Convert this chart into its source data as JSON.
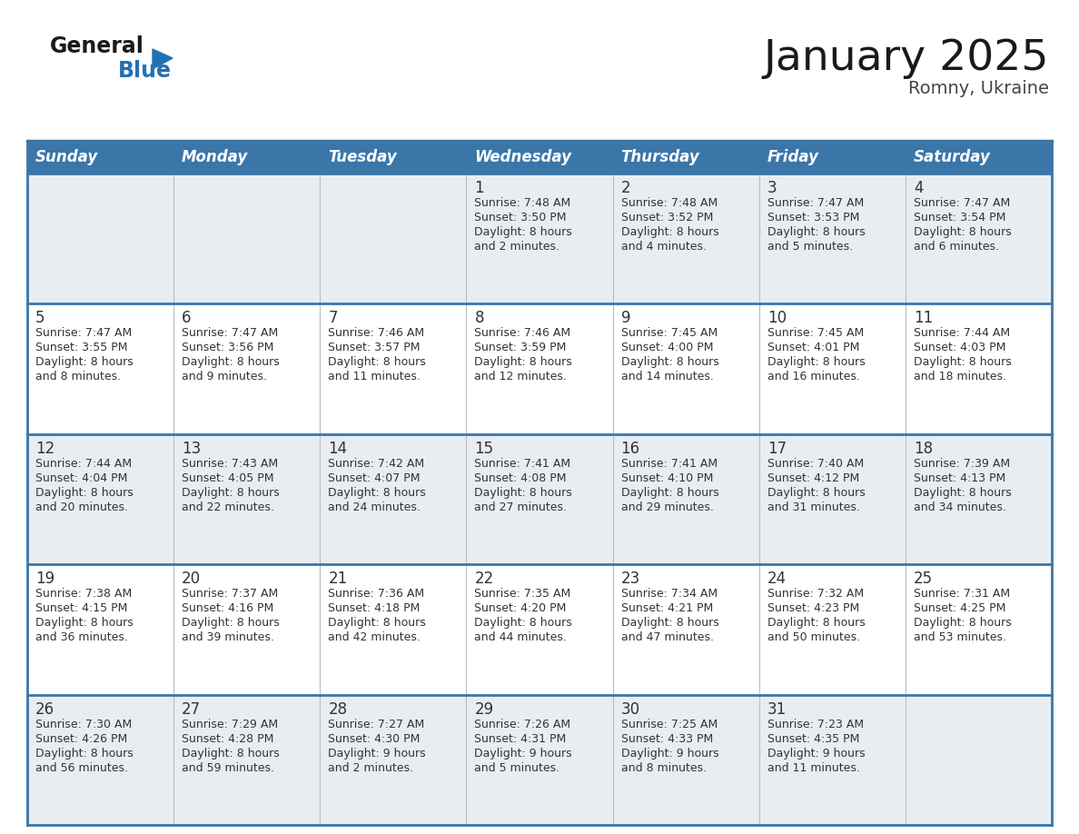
{
  "title": "January 2025",
  "subtitle": "Romny, Ukraine",
  "days_of_week": [
    "Sunday",
    "Monday",
    "Tuesday",
    "Wednesday",
    "Thursday",
    "Friday",
    "Saturday"
  ],
  "header_bg": "#3a76a8",
  "header_text_color": "#ffffff",
  "row_bg_light": "#e8edf2",
  "row_bg_white": "#ffffff",
  "separator_color": "#3a76a8",
  "day_num_color": "#333333",
  "cell_text_color": "#333333",
  "title_color": "#1a1a1a",
  "subtitle_color": "#444444",
  "logo_general_color": "#1a1a1a",
  "logo_blue_color": "#2271b3",
  "calendar_data": [
    [
      {
        "day": null,
        "sunrise": null,
        "sunset": null,
        "daylight": null
      },
      {
        "day": null,
        "sunrise": null,
        "sunset": null,
        "daylight": null
      },
      {
        "day": null,
        "sunrise": null,
        "sunset": null,
        "daylight": null
      },
      {
        "day": 1,
        "sunrise": "7:48 AM",
        "sunset": "3:50 PM",
        "daylight_h": "Daylight: 8 hours",
        "daylight_m": "and 2 minutes."
      },
      {
        "day": 2,
        "sunrise": "7:48 AM",
        "sunset": "3:52 PM",
        "daylight_h": "Daylight: 8 hours",
        "daylight_m": "and 4 minutes."
      },
      {
        "day": 3,
        "sunrise": "7:47 AM",
        "sunset": "3:53 PM",
        "daylight_h": "Daylight: 8 hours",
        "daylight_m": "and 5 minutes."
      },
      {
        "day": 4,
        "sunrise": "7:47 AM",
        "sunset": "3:54 PM",
        "daylight_h": "Daylight: 8 hours",
        "daylight_m": "and 6 minutes."
      }
    ],
    [
      {
        "day": 5,
        "sunrise": "7:47 AM",
        "sunset": "3:55 PM",
        "daylight_h": "Daylight: 8 hours",
        "daylight_m": "and 8 minutes."
      },
      {
        "day": 6,
        "sunrise": "7:47 AM",
        "sunset": "3:56 PM",
        "daylight_h": "Daylight: 8 hours",
        "daylight_m": "and 9 minutes."
      },
      {
        "day": 7,
        "sunrise": "7:46 AM",
        "sunset": "3:57 PM",
        "daylight_h": "Daylight: 8 hours",
        "daylight_m": "and 11 minutes."
      },
      {
        "day": 8,
        "sunrise": "7:46 AM",
        "sunset": "3:59 PM",
        "daylight_h": "Daylight: 8 hours",
        "daylight_m": "and 12 minutes."
      },
      {
        "day": 9,
        "sunrise": "7:45 AM",
        "sunset": "4:00 PM",
        "daylight_h": "Daylight: 8 hours",
        "daylight_m": "and 14 minutes."
      },
      {
        "day": 10,
        "sunrise": "7:45 AM",
        "sunset": "4:01 PM",
        "daylight_h": "Daylight: 8 hours",
        "daylight_m": "and 16 minutes."
      },
      {
        "day": 11,
        "sunrise": "7:44 AM",
        "sunset": "4:03 PM",
        "daylight_h": "Daylight: 8 hours",
        "daylight_m": "and 18 minutes."
      }
    ],
    [
      {
        "day": 12,
        "sunrise": "7:44 AM",
        "sunset": "4:04 PM",
        "daylight_h": "Daylight: 8 hours",
        "daylight_m": "and 20 minutes."
      },
      {
        "day": 13,
        "sunrise": "7:43 AM",
        "sunset": "4:05 PM",
        "daylight_h": "Daylight: 8 hours",
        "daylight_m": "and 22 minutes."
      },
      {
        "day": 14,
        "sunrise": "7:42 AM",
        "sunset": "4:07 PM",
        "daylight_h": "Daylight: 8 hours",
        "daylight_m": "and 24 minutes."
      },
      {
        "day": 15,
        "sunrise": "7:41 AM",
        "sunset": "4:08 PM",
        "daylight_h": "Daylight: 8 hours",
        "daylight_m": "and 27 minutes."
      },
      {
        "day": 16,
        "sunrise": "7:41 AM",
        "sunset": "4:10 PM",
        "daylight_h": "Daylight: 8 hours",
        "daylight_m": "and 29 minutes."
      },
      {
        "day": 17,
        "sunrise": "7:40 AM",
        "sunset": "4:12 PM",
        "daylight_h": "Daylight: 8 hours",
        "daylight_m": "and 31 minutes."
      },
      {
        "day": 18,
        "sunrise": "7:39 AM",
        "sunset": "4:13 PM",
        "daylight_h": "Daylight: 8 hours",
        "daylight_m": "and 34 minutes."
      }
    ],
    [
      {
        "day": 19,
        "sunrise": "7:38 AM",
        "sunset": "4:15 PM",
        "daylight_h": "Daylight: 8 hours",
        "daylight_m": "and 36 minutes."
      },
      {
        "day": 20,
        "sunrise": "7:37 AM",
        "sunset": "4:16 PM",
        "daylight_h": "Daylight: 8 hours",
        "daylight_m": "and 39 minutes."
      },
      {
        "day": 21,
        "sunrise": "7:36 AM",
        "sunset": "4:18 PM",
        "daylight_h": "Daylight: 8 hours",
        "daylight_m": "and 42 minutes."
      },
      {
        "day": 22,
        "sunrise": "7:35 AM",
        "sunset": "4:20 PM",
        "daylight_h": "Daylight: 8 hours",
        "daylight_m": "and 44 minutes."
      },
      {
        "day": 23,
        "sunrise": "7:34 AM",
        "sunset": "4:21 PM",
        "daylight_h": "Daylight: 8 hours",
        "daylight_m": "and 47 minutes."
      },
      {
        "day": 24,
        "sunrise": "7:32 AM",
        "sunset": "4:23 PM",
        "daylight_h": "Daylight: 8 hours",
        "daylight_m": "and 50 minutes."
      },
      {
        "day": 25,
        "sunrise": "7:31 AM",
        "sunset": "4:25 PM",
        "daylight_h": "Daylight: 8 hours",
        "daylight_m": "and 53 minutes."
      }
    ],
    [
      {
        "day": 26,
        "sunrise": "7:30 AM",
        "sunset": "4:26 PM",
        "daylight_h": "Daylight: 8 hours",
        "daylight_m": "and 56 minutes."
      },
      {
        "day": 27,
        "sunrise": "7:29 AM",
        "sunset": "4:28 PM",
        "daylight_h": "Daylight: 8 hours",
        "daylight_m": "and 59 minutes."
      },
      {
        "day": 28,
        "sunrise": "7:27 AM",
        "sunset": "4:30 PM",
        "daylight_h": "Daylight: 9 hours",
        "daylight_m": "and 2 minutes."
      },
      {
        "day": 29,
        "sunrise": "7:26 AM",
        "sunset": "4:31 PM",
        "daylight_h": "Daylight: 9 hours",
        "daylight_m": "and 5 minutes."
      },
      {
        "day": 30,
        "sunrise": "7:25 AM",
        "sunset": "4:33 PM",
        "daylight_h": "Daylight: 9 hours",
        "daylight_m": "and 8 minutes."
      },
      {
        "day": 31,
        "sunrise": "7:23 AM",
        "sunset": "4:35 PM",
        "daylight_h": "Daylight: 9 hours",
        "daylight_m": "and 11 minutes."
      },
      {
        "day": null,
        "sunrise": null,
        "sunset": null,
        "daylight_h": null,
        "daylight_m": null
      }
    ]
  ]
}
